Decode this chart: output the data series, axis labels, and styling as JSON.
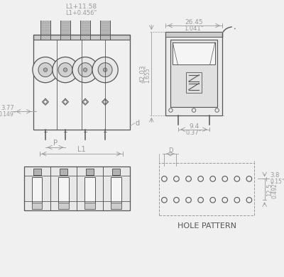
{
  "bg_color": "#f0f0f0",
  "line_color": "#999999",
  "dark_line": "#555555",
  "text_color": "#888888",
  "dim_color": "#999999",
  "dim_texts": {
    "top_width1": "L1+11.58",
    "top_width2": "L1+0.456\"",
    "side_left1": "3.77",
    "side_left2": "0.149\"",
    "pitch": "P",
    "L1_label": "L1",
    "d_label": "d",
    "right_width1": "26.45",
    "right_width2": "1.041\"",
    "right_height1": "42.03",
    "right_height2": "1.655\"",
    "right_bot1": "9.4",
    "right_bot2": "0.37\"",
    "hole_D": "D",
    "hole_width1": "3.8",
    "hole_width2": "0.15\"",
    "hole_height1": "12.5",
    "hole_height2": "0.492\"",
    "hole_pattern": "HOLE PATTERN"
  }
}
